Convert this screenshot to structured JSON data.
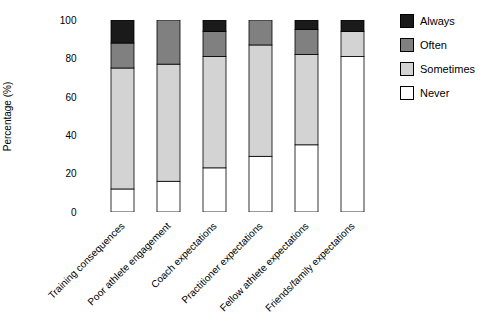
{
  "chart_data": {
    "type": "bar",
    "stacked": true,
    "categories": [
      "Training consequences",
      "Poor athlete engagement",
      "Coach expectations",
      "Practitioner expectations",
      "Fellow athlete expectations",
      "Friends/family expectations"
    ],
    "series": [
      {
        "name": "Never",
        "color": "#ffffff",
        "values": [
          12,
          16,
          23,
          29,
          35,
          81
        ]
      },
      {
        "name": "Sometimes",
        "color": "#d3d3d3",
        "values": [
          63,
          61,
          58,
          58,
          47,
          13
        ]
      },
      {
        "name": "Often",
        "color": "#808080",
        "values": [
          13,
          23,
          13,
          13,
          13,
          0
        ]
      },
      {
        "name": "Always",
        "color": "#1a1a1a",
        "values": [
          12,
          0,
          6,
          0,
          5,
          6
        ]
      }
    ],
    "ylabel": "Percentage (%)",
    "ylim": [
      0,
      100
    ],
    "yticks": [
      0,
      20,
      40,
      60,
      80,
      100
    ],
    "grid": false,
    "legend": "upper right"
  }
}
